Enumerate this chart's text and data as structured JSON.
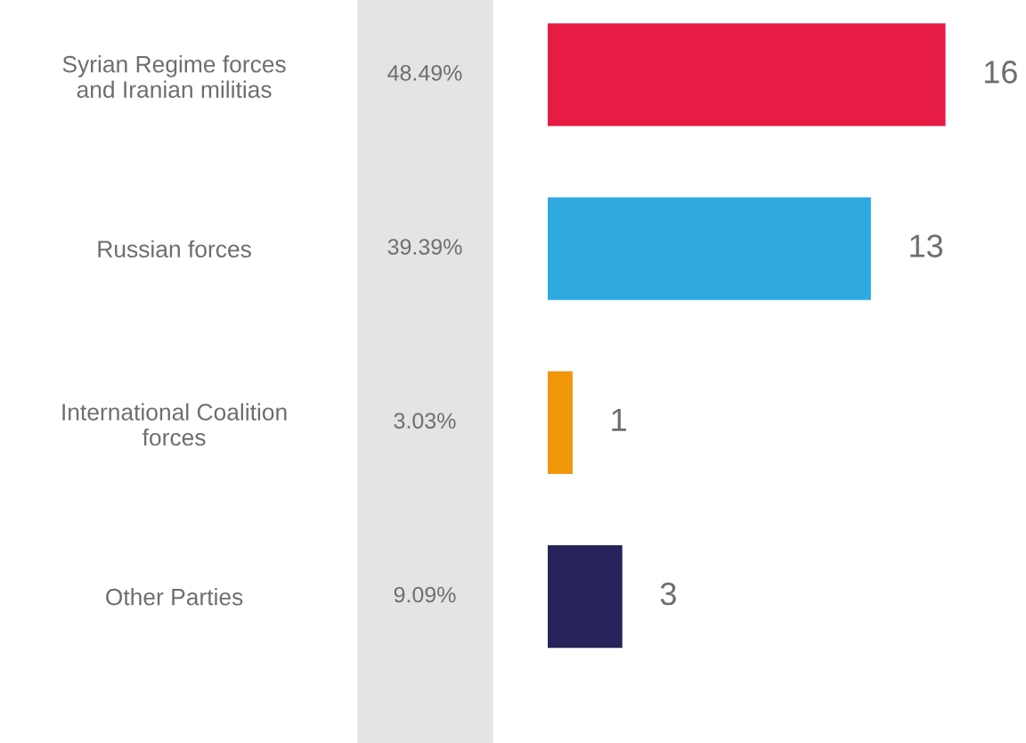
{
  "chart_data": {
    "type": "bar",
    "orientation": "horizontal",
    "categories": [
      "Syrian Regime forces\nand Iranian militias",
      "Russian forces",
      "International Coalition\nforces",
      "Other Parties"
    ],
    "values": [
      16,
      13,
      1,
      3
    ],
    "colors": [
      "#e61c45",
      "#2eaae1",
      "#f0960a",
      "#28235a"
    ],
    "data_labels": true,
    "annotations": [
      "48.49%",
      "39.39%",
      "3.03%",
      "9.09%"
    ],
    "grid": false,
    "legend": false
  }
}
